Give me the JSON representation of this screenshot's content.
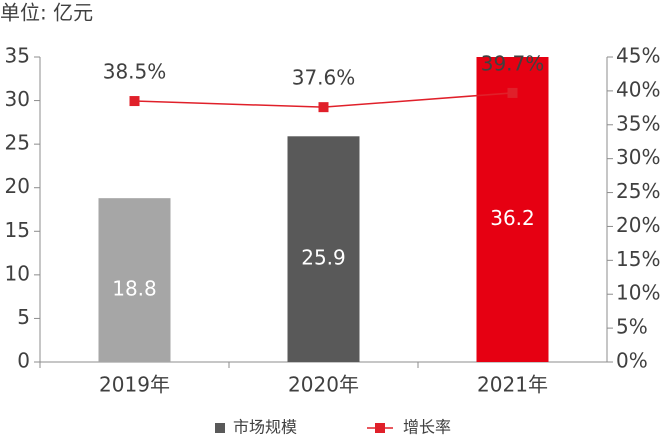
{
  "chart_data": {
    "type": "bar",
    "unit_label": "单位: 亿元",
    "categories": [
      "2019年",
      "2020年",
      "2021年"
    ],
    "series": [
      {
        "name": "市场规模",
        "type": "bar",
        "color": "#595959",
        "colors": [
          "#a6a6a6",
          "#595959",
          "#e60012"
        ],
        "values": [
          18.8,
          25.9,
          36.2
        ]
      },
      {
        "name": "增长率",
        "type": "line",
        "axis": "y2",
        "color": "#e0202a",
        "values": [
          38.5,
          37.6,
          39.7
        ],
        "value_labels": [
          "38.5%",
          "37.6%",
          "39.7%"
        ]
      }
    ],
    "ylim": [
      0,
      35
    ],
    "yticks": [
      0,
      5,
      10,
      15,
      20,
      25,
      30,
      35
    ],
    "y2lim": [
      0,
      45
    ],
    "y2ticks": [
      {
        "value": 0,
        "label": "0%"
      },
      {
        "value": 5,
        "label": "5%"
      },
      {
        "value": 10,
        "label": "10%"
      },
      {
        "value": 15,
        "label": "15%"
      },
      {
        "value": 20,
        "label": "20%"
      },
      {
        "value": 25,
        "label": "25%"
      },
      {
        "value": 30,
        "label": "30%"
      },
      {
        "value": 35,
        "label": "35%"
      },
      {
        "value": 40,
        "label": "40%"
      },
      {
        "value": 45,
        "label": "45%"
      }
    ]
  }
}
